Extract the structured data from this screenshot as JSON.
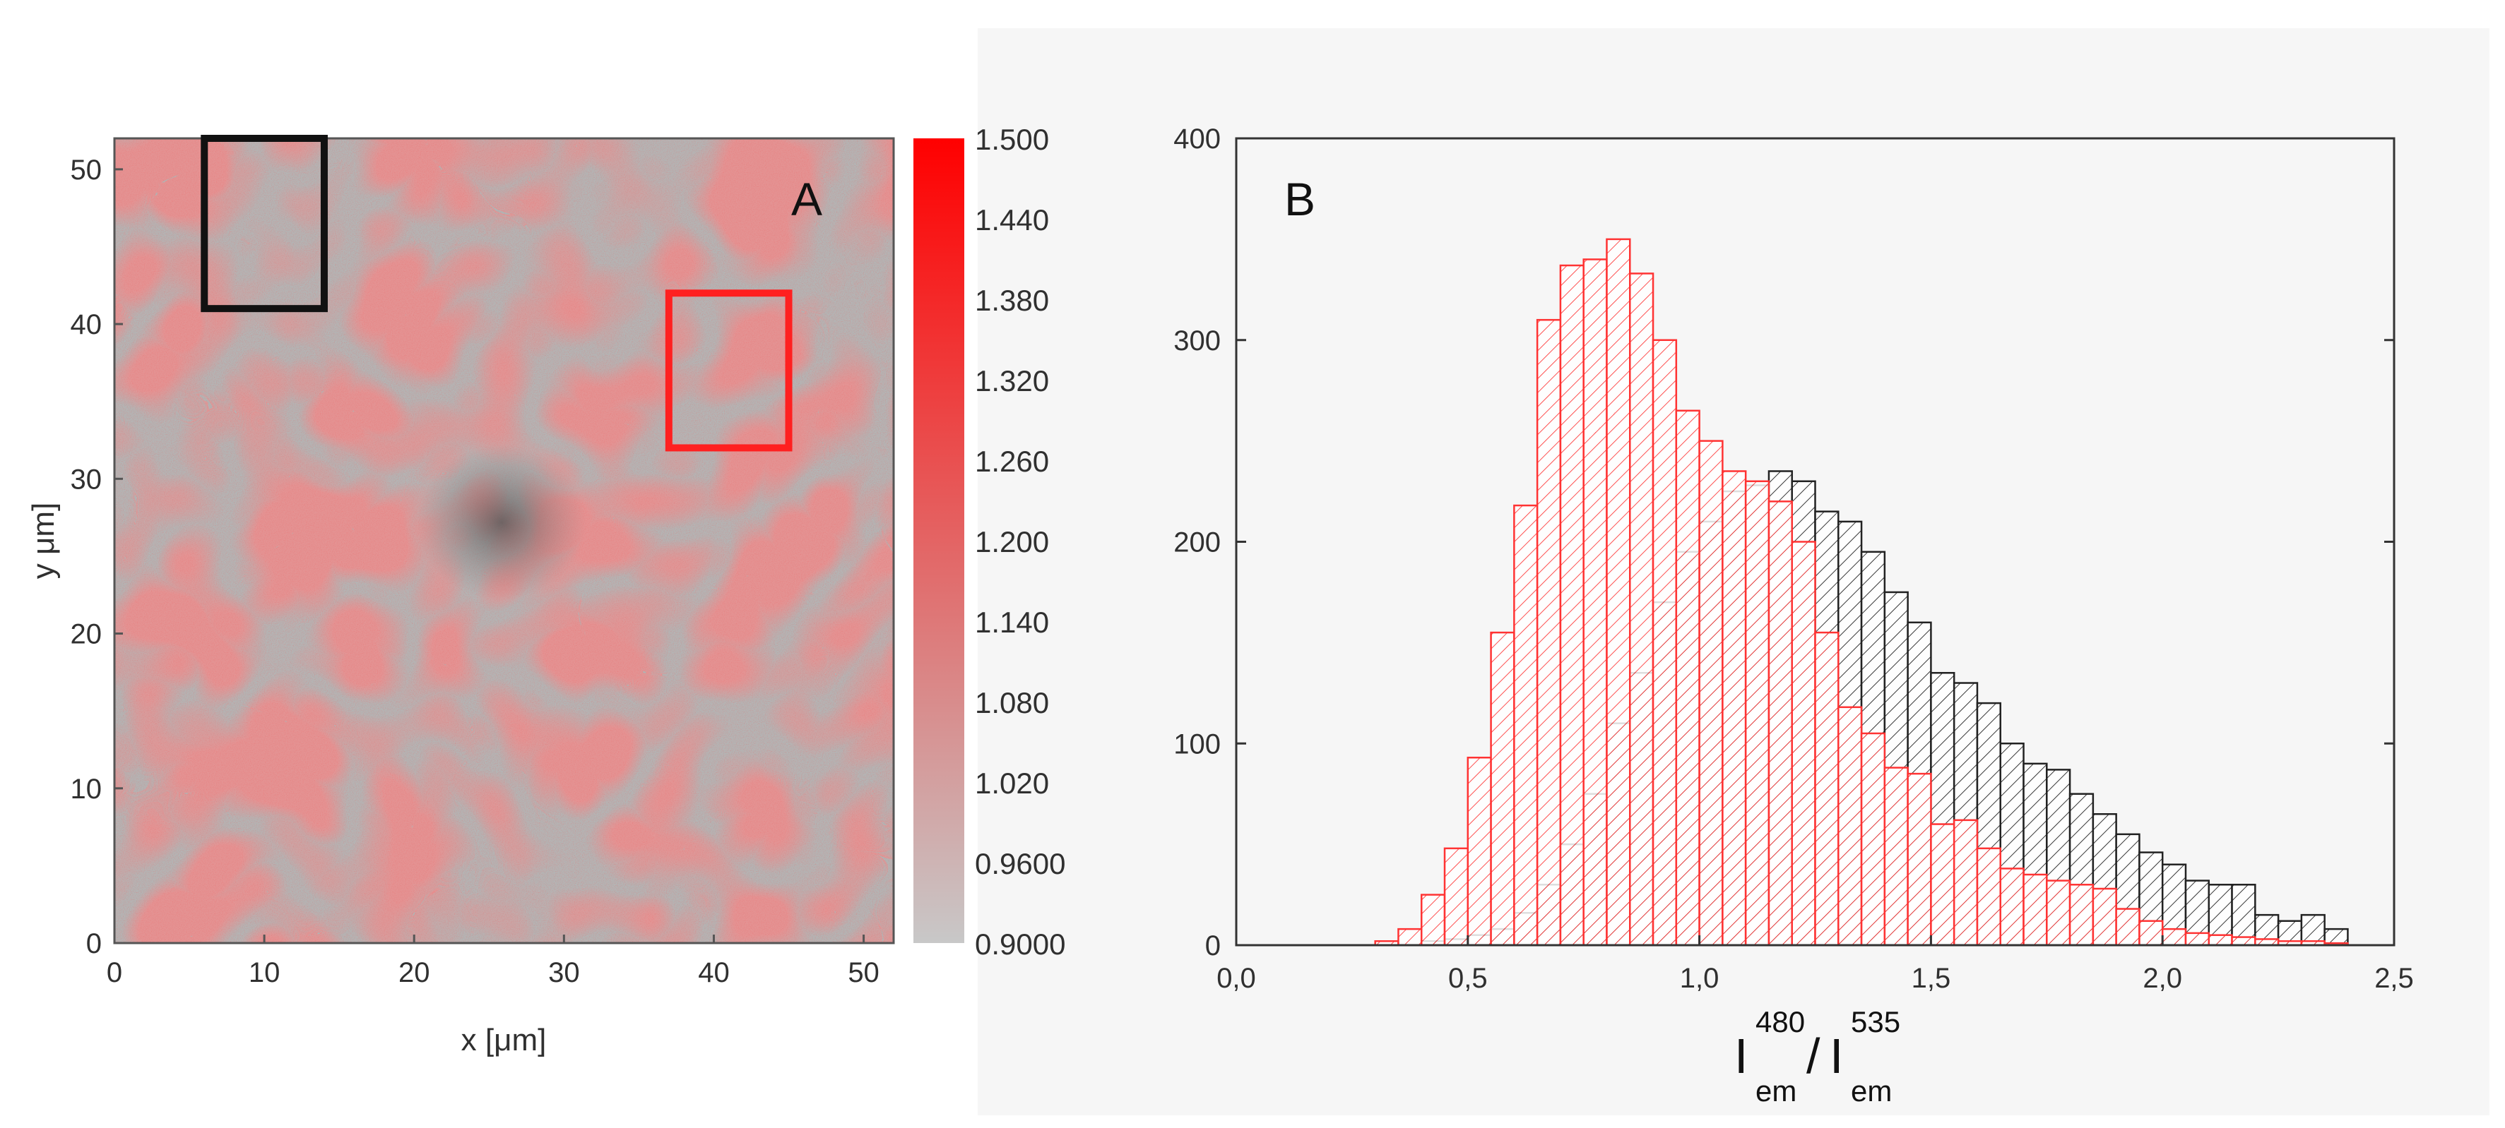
{
  "chart_data": [
    {
      "type": "heatmap",
      "panel_label": "A",
      "xlabel": "x [μm]",
      "ylabel": "y  μm]",
      "xlim": [
        0,
        52
      ],
      "ylim": [
        0,
        52
      ],
      "x_ticks": [
        "0",
        "10",
        "20",
        "30",
        "40",
        "50"
      ],
      "y_ticks": [
        "0",
        "10",
        "20",
        "30",
        "40",
        "50"
      ],
      "colorbar": {
        "min": 0.9,
        "max": 1.5,
        "labels": [
          "1.500",
          "1.440",
          "1.380",
          "1.320",
          "1.260",
          "1.200",
          "1.140",
          "1.080",
          "1.020",
          "0.9600",
          "0.9000"
        ],
        "low_color": "#c8c8c8",
        "high_color": "#ff0000"
      },
      "regions": [
        {
          "name": "black-box",
          "color": "#111111",
          "x": [
            6,
            14
          ],
          "y": [
            41,
            52
          ]
        },
        {
          "name": "red-box",
          "color": "#ff2020",
          "x": [
            37,
            45
          ],
          "y": [
            32,
            42
          ]
        }
      ]
    },
    {
      "type": "bar",
      "subtype": "histogram",
      "panel_label": "B",
      "xlabel": {
        "base1": "I",
        "sup1": "480",
        "sub1": "em",
        "slash": "/",
        "base2": "I",
        "sup2": "535",
        "sub2": "em"
      },
      "ylabel": "",
      "xlim": [
        0.0,
        2.5
      ],
      "ylim": [
        0,
        400
      ],
      "x_ticks": [
        "0,0",
        "0,5",
        "1,0",
        "1,5",
        "2,0",
        "2,5"
      ],
      "y_ticks": [
        "0",
        "100",
        "200",
        "300",
        "400"
      ],
      "bin_width": 0.05,
      "bin_start": 0.3,
      "series": [
        {
          "name": "black region",
          "color": "#222222",
          "values": [
            0,
            0,
            2,
            3,
            5,
            8,
            16,
            30,
            50,
            75,
            110,
            135,
            170,
            195,
            210,
            225,
            228,
            235,
            230,
            215,
            210,
            195,
            175,
            160,
            135,
            130,
            120,
            100,
            90,
            87,
            75,
            65,
            55,
            46,
            40,
            32,
            30,
            30,
            15,
            12,
            15,
            8
          ]
        },
        {
          "name": "red region",
          "color": "#ff3333",
          "values": [
            2,
            8,
            25,
            48,
            93,
            155,
            218,
            310,
            337,
            340,
            350,
            333,
            300,
            265,
            250,
            235,
            230,
            220,
            200,
            155,
            118,
            105,
            88,
            85,
            60,
            62,
            48,
            38,
            35,
            32,
            30,
            28,
            18,
            12,
            8,
            6,
            5,
            4,
            3,
            2,
            2,
            1
          ]
        }
      ]
    }
  ]
}
